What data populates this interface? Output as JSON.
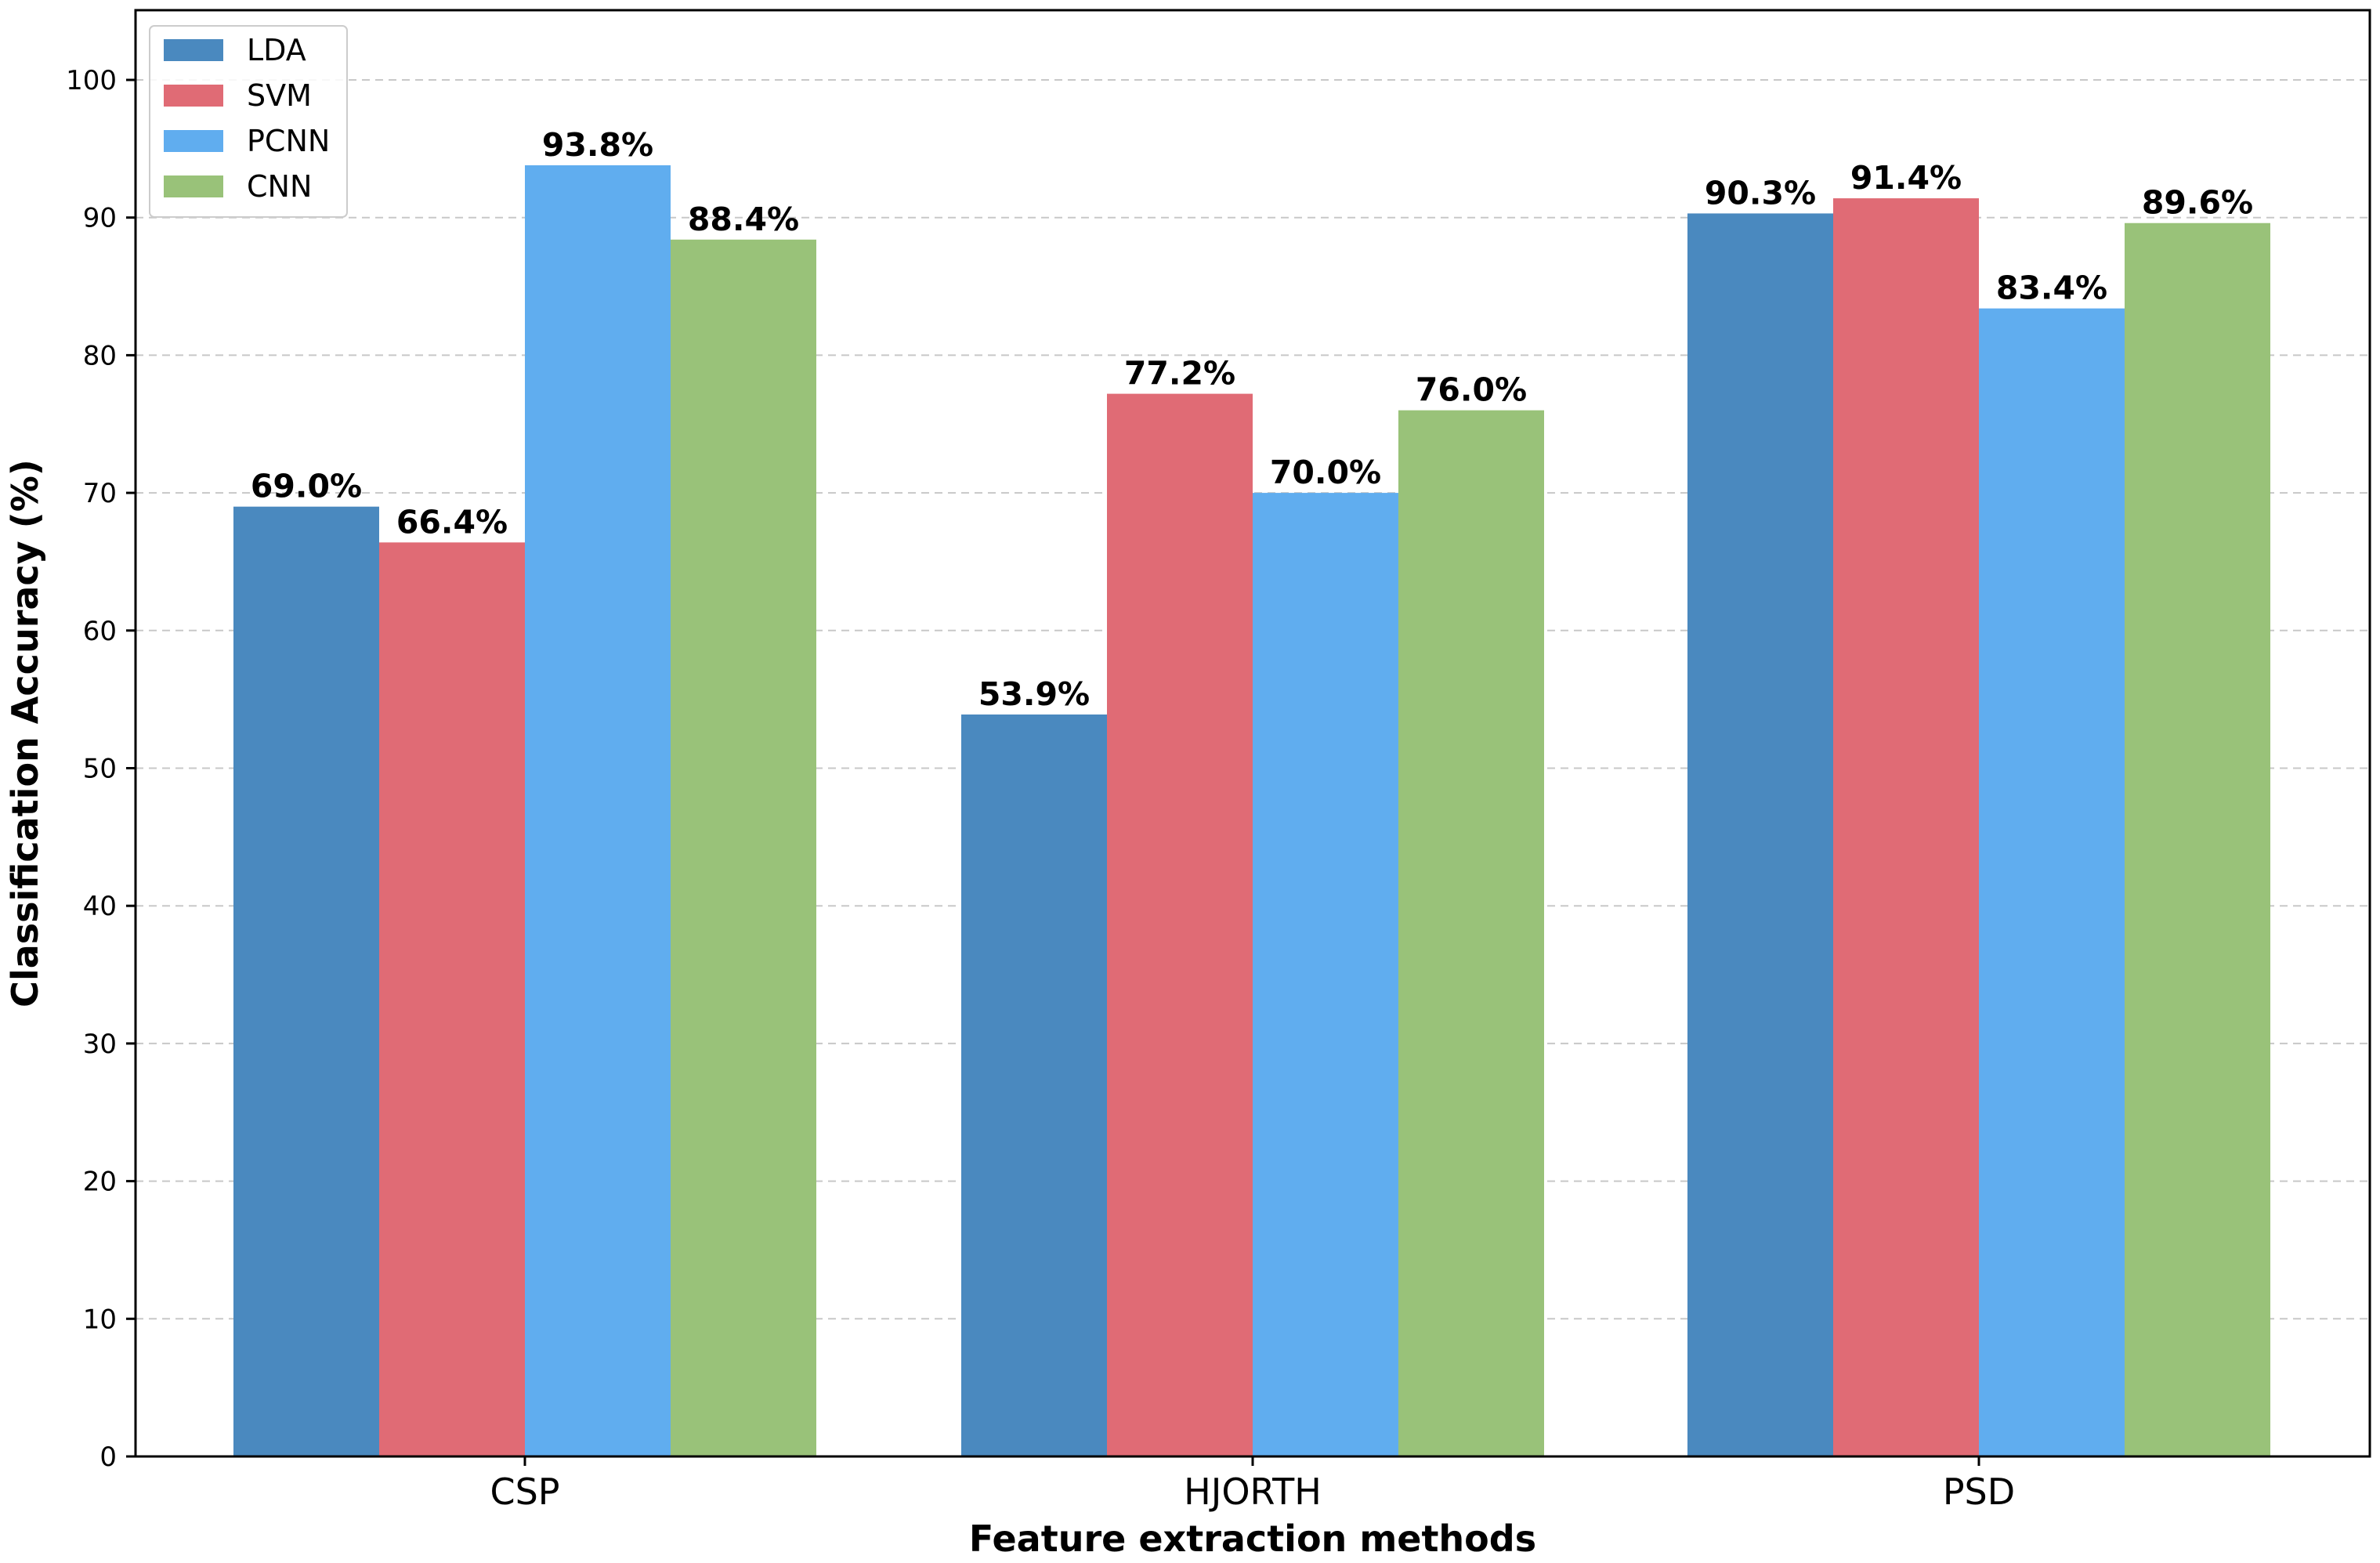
{
  "chart_data": {
    "type": "bar",
    "title": "",
    "xlabel": "Feature extraction methods",
    "ylabel": "Classification Accuracy (%)",
    "ylim": [
      0,
      105
    ],
    "yticks": [
      0,
      10,
      20,
      30,
      40,
      50,
      60,
      70,
      80,
      90,
      100
    ],
    "grid": "horizontal-dashed",
    "legend_position": "top-left",
    "categories": [
      "CSP",
      "HJORTH",
      "PSD"
    ],
    "series": [
      {
        "name": "LDA",
        "color": "#4a89bf",
        "values": [
          69.0,
          53.9,
          90.3
        ],
        "labels": [
          "69.0%",
          "53.9%",
          "90.3%"
        ]
      },
      {
        "name": "SVM",
        "color": "#e06b75",
        "values": [
          66.4,
          77.2,
          91.4
        ],
        "labels": [
          "66.4%",
          "77.2%",
          "91.4%"
        ]
      },
      {
        "name": "PCNN",
        "color": "#60adef",
        "values": [
          93.8,
          70.0,
          83.4
        ],
        "labels": [
          "93.8%",
          "70.0%",
          "83.4%"
        ]
      },
      {
        "name": "CNN",
        "color": "#99c279",
        "values": [
          88.4,
          76.0,
          89.6
        ],
        "labels": [
          "88.4%",
          "76.0%",
          "89.6%"
        ]
      }
    ]
  }
}
